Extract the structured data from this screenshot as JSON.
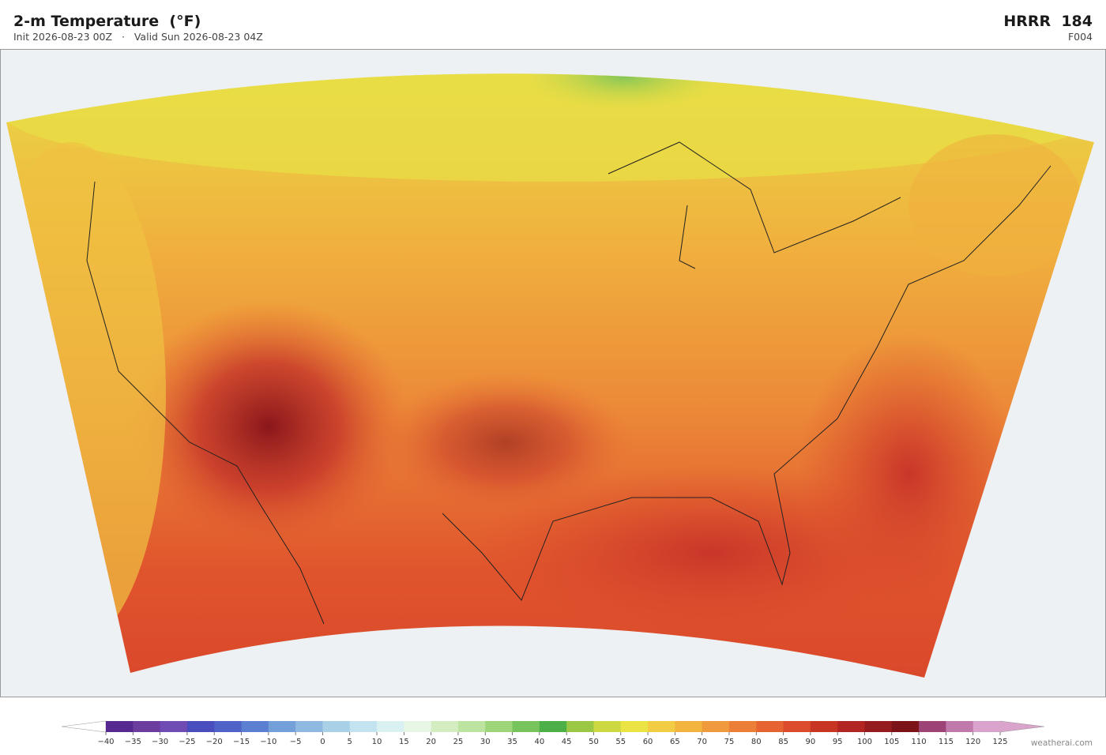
{
  "header": {
    "title": "2-m Temperature  (°F)",
    "subtitle": "Init 2026-08-23 00Z   ·   Valid Sun 2026-08-23 04Z",
    "model": "HRRR  184",
    "forecast_hour": "F004"
  },
  "colorbar": {
    "ticks": [
      {
        "value": -40,
        "label": "−40"
      },
      {
        "value": -35,
        "label": "−35"
      },
      {
        "value": -30,
        "label": "−30"
      },
      {
        "value": -25,
        "label": "−25"
      },
      {
        "value": -20,
        "label": "−20"
      },
      {
        "value": -15,
        "label": "−15"
      },
      {
        "value": -10,
        "label": "−10"
      },
      {
        "value": -5,
        "label": "−5"
      },
      0,
      5,
      10,
      15,
      20,
      25,
      30,
      35,
      40,
      45,
      50,
      55,
      60,
      65,
      70,
      75,
      80,
      85,
      90,
      95,
      100,
      105,
      110,
      115,
      120,
      125
    ],
    "colors": [
      "#55298f",
      "#6a3d9f",
      "#6f4cb3",
      "#4a4dbd",
      "#4f62c8",
      "#5b80d2",
      "#74a0da",
      "#8fb9e0",
      "#a8d1e8",
      "#c2e3ef",
      "#daf1f2",
      "#e8f6e6",
      "#d4edc0",
      "#bce3a0",
      "#9dd57a",
      "#78c45c",
      "#4caf47",
      "#9ac845",
      "#cdd943",
      "#ebe244",
      "#f2cc43",
      "#f2b33f",
      "#ef9a3c",
      "#ec7f37",
      "#e66431",
      "#dc4b2b",
      "#c93525",
      "#b22522",
      "#951b1e",
      "#7c1318",
      "#9d4375",
      "#c07aac",
      "#d9a3cc"
    ],
    "under_color": "#ffffff",
    "over_color": "#d9a3cc"
  },
  "footer": {
    "credit": "weatherai.com"
  }
}
